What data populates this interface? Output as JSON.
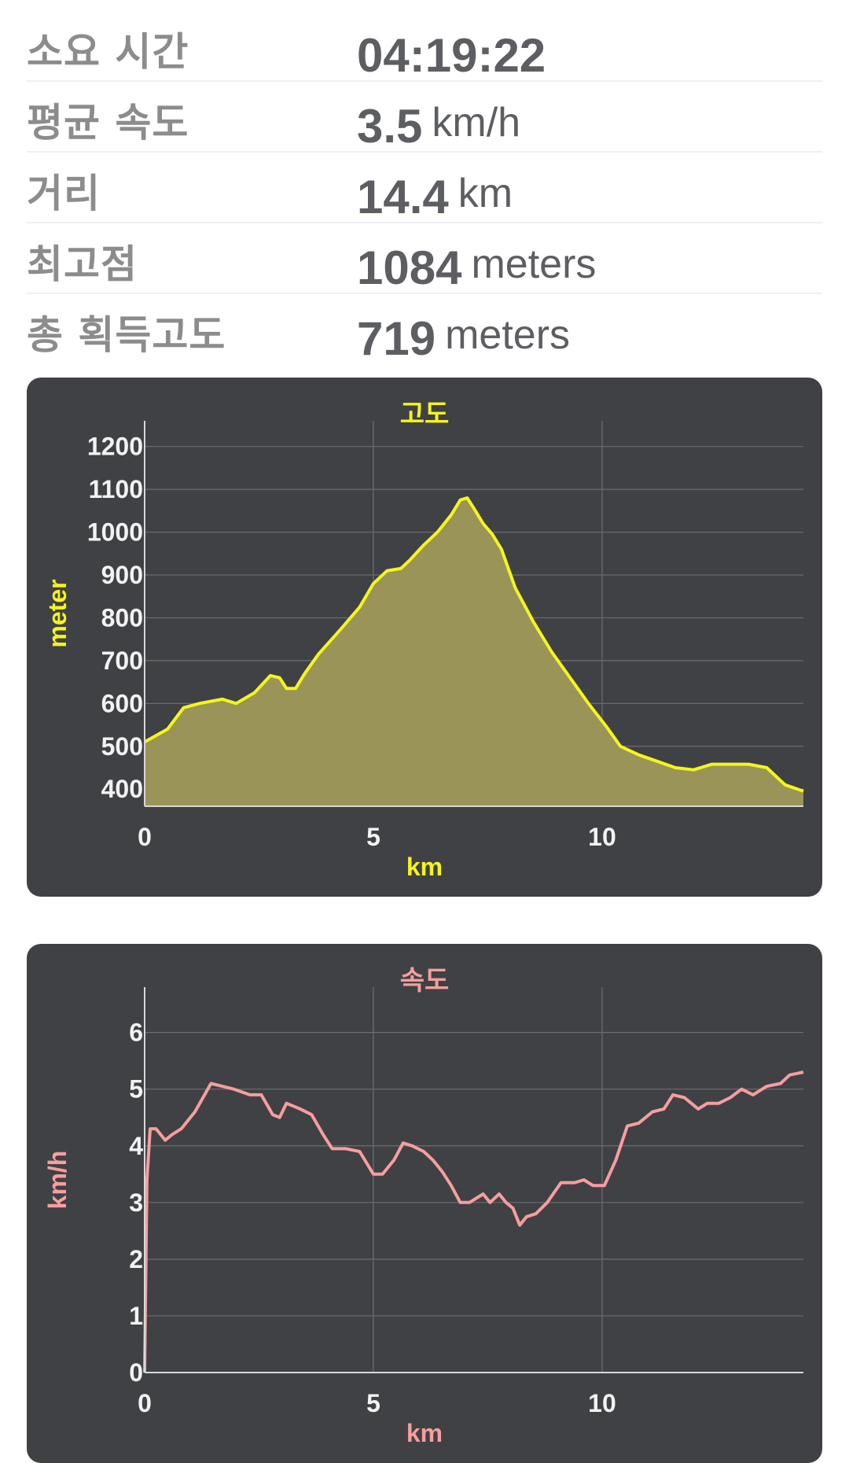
{
  "stats": {
    "duration": {
      "label": "소요 시간",
      "value": "04:19:22",
      "unit": ""
    },
    "avg_speed": {
      "label": "평균 속도",
      "value": "3.5",
      "unit": "km/h"
    },
    "distance": {
      "label": "거리",
      "value": "14.4",
      "unit": "km"
    },
    "highest": {
      "label": "최고점",
      "value": "1084",
      "unit": "meters"
    },
    "gain": {
      "label": "총 획득고도",
      "value": "719",
      "unit": "meters"
    }
  },
  "chart_data": [
    {
      "type": "area",
      "title": "고도",
      "xlabel": "km",
      "ylabel": "meter",
      "xlim": [
        0,
        14.4
      ],
      "ylim": [
        360,
        1260
      ],
      "x_ticks": [
        0,
        5,
        10
      ],
      "y_ticks": [
        400,
        500,
        600,
        700,
        800,
        900,
        1000,
        1100,
        1200
      ],
      "grid": true,
      "line_color": "#f5f51c",
      "fill_color": "#9a9458",
      "series": [
        {
          "x": [
            0,
            0.5,
            0.85,
            1.2,
            1.7,
            2.0,
            2.4,
            2.75,
            2.95,
            3.1,
            3.3,
            3.5,
            3.8,
            4.3,
            4.7,
            5.0,
            5.3,
            5.6,
            5.8,
            6.1,
            6.4,
            6.7,
            6.9,
            7.05,
            7.2,
            7.4,
            7.6,
            7.8,
            8.1,
            8.5,
            8.9,
            9.3,
            9.7,
            10.1,
            10.4,
            10.8,
            11.2,
            11.6,
            12.0,
            12.4,
            12.8,
            13.2,
            13.6,
            14.0,
            14.4
          ],
          "y": [
            510,
            540,
            590,
            600,
            610,
            600,
            625,
            665,
            660,
            635,
            635,
            670,
            715,
            775,
            825,
            880,
            910,
            915,
            935,
            970,
            1000,
            1040,
            1075,
            1080,
            1055,
            1020,
            995,
            960,
            870,
            790,
            720,
            660,
            600,
            545,
            500,
            480,
            465,
            450,
            445,
            458,
            458,
            458,
            450,
            410,
            395
          ]
        }
      ]
    },
    {
      "type": "line",
      "title": "속도",
      "xlabel": "km",
      "ylabel": "km/h",
      "xlim": [
        0,
        14.4
      ],
      "ylim": [
        0,
        6.8
      ],
      "x_ticks": [
        0,
        5,
        10
      ],
      "y_ticks": [
        0,
        1,
        2,
        3,
        4,
        5,
        6
      ],
      "grid": true,
      "line_color": "#f79e9e",
      "series": [
        {
          "x": [
            0,
            0.05,
            0.12,
            0.25,
            0.45,
            0.6,
            0.8,
            1.1,
            1.45,
            1.7,
            1.95,
            2.3,
            2.55,
            2.8,
            2.95,
            3.1,
            3.4,
            3.65,
            3.9,
            4.1,
            4.4,
            4.7,
            5.0,
            5.2,
            5.45,
            5.65,
            5.85,
            6.1,
            6.3,
            6.5,
            6.7,
            6.9,
            7.1,
            7.4,
            7.55,
            7.75,
            7.9,
            8.05,
            8.2,
            8.35,
            8.55,
            8.8,
            9.1,
            9.4,
            9.6,
            9.8,
            10.05,
            10.3,
            10.55,
            10.8,
            11.1,
            11.35,
            11.55,
            11.8,
            12.1,
            12.3,
            12.55,
            12.8,
            13.05,
            13.3,
            13.6,
            13.9,
            14.1,
            14.4
          ],
          "y": [
            0,
            3.4,
            4.3,
            4.3,
            4.1,
            4.2,
            4.3,
            4.6,
            5.1,
            5.05,
            5.0,
            4.9,
            4.9,
            4.55,
            4.5,
            4.75,
            4.65,
            4.55,
            4.2,
            3.95,
            3.95,
            3.9,
            3.5,
            3.5,
            3.75,
            4.05,
            4.0,
            3.9,
            3.75,
            3.55,
            3.3,
            3.0,
            3.0,
            3.15,
            3.0,
            3.15,
            3.0,
            2.9,
            2.6,
            2.75,
            2.8,
            3.0,
            3.35,
            3.35,
            3.4,
            3.3,
            3.3,
            3.75,
            4.35,
            4.4,
            4.6,
            4.65,
            4.9,
            4.85,
            4.65,
            4.75,
            4.75,
            4.85,
            5.0,
            4.9,
            5.05,
            5.1,
            5.25,
            5.3
          ]
        }
      ]
    }
  ]
}
